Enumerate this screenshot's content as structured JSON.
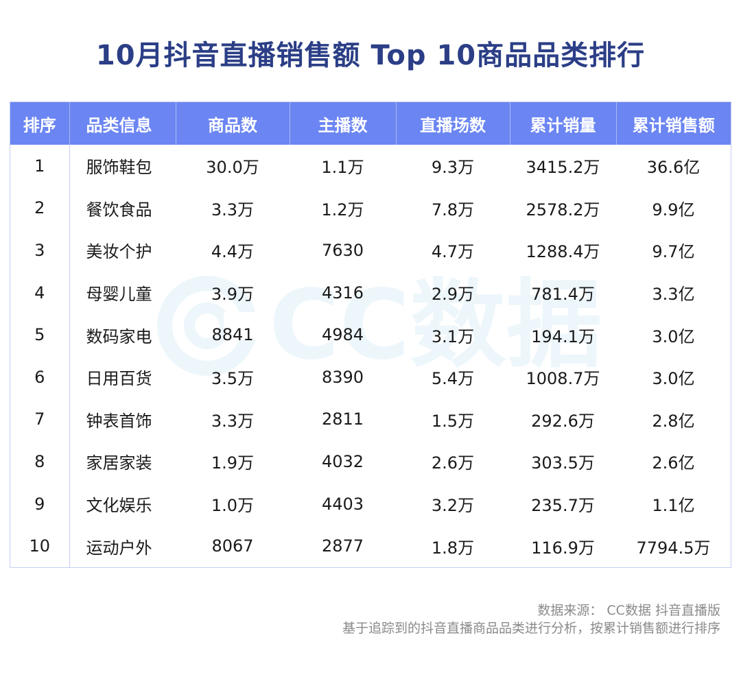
{
  "title": "10月抖音直播销售额 Top 10商品品类排行",
  "watermark": "CC数据",
  "table": {
    "headers": [
      "排序",
      "品类信息",
      "商品数",
      "主播数",
      "直播场数",
      "累计销量",
      "累计销售额"
    ],
    "rows": [
      [
        "1",
        "服饰鞋包",
        "30.0万",
        "1.1万",
        "9.3万",
        "3415.2万",
        "36.6亿"
      ],
      [
        "2",
        "餐饮食品",
        "3.3万",
        "1.2万",
        "7.8万",
        "2578.2万",
        "9.9亿"
      ],
      [
        "3",
        "美妆个护",
        "4.4万",
        "7630",
        "4.7万",
        "1288.4万",
        "9.7亿"
      ],
      [
        "4",
        "母婴儿童",
        "3.9万",
        "4316",
        "2.9万",
        "781.4万",
        "3.3亿"
      ],
      [
        "5",
        "数码家电",
        "8841",
        "4984",
        "3.1万",
        "194.1万",
        "3.0亿"
      ],
      [
        "6",
        "日用百货",
        "3.5万",
        "8390",
        "5.4万",
        "1008.7万",
        "3.0亿"
      ],
      [
        "7",
        "钟表首饰",
        "3.3万",
        "2811",
        "1.5万",
        "292.6万",
        "2.8亿"
      ],
      [
        "8",
        "家居家装",
        "1.9万",
        "4032",
        "2.6万",
        "303.5万",
        "2.6亿"
      ],
      [
        "9",
        "文化娱乐",
        "1.0万",
        "4403",
        "3.2万",
        "235.7万",
        "1.1亿"
      ],
      [
        "10",
        "运动户外",
        "8067",
        "2877",
        "1.8万",
        "116.9万",
        "7794.5万"
      ]
    ]
  },
  "footer": {
    "source": "数据来源： CC数据 抖音直播版",
    "note": "基于追踪到的抖音直播商品品类进行分析，按累计销售额进行排序"
  },
  "colors": {
    "title": "#2b3e86",
    "header_bg": "#6b85f2",
    "border": "#c3cdf2",
    "watermark": "#3fa6d8"
  }
}
